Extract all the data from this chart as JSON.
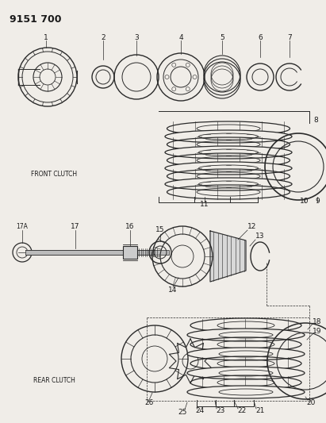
{
  "title": "9151 700",
  "bg_color": "#f0ede8",
  "line_color": "#2a2a2a",
  "text_color": "#1a1a1a",
  "front_clutch_label": "FRONT CLUTCH",
  "rear_clutch_label": "REAR CLUTCH"
}
